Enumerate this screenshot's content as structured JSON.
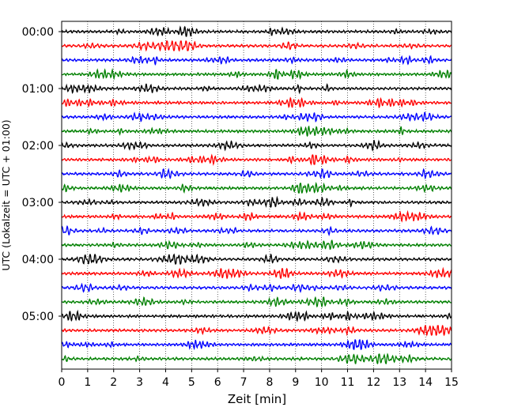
{
  "chart_data": {
    "type": "line",
    "title": "",
    "xlabel": "Zeit  [min]",
    "ylabel": "UTC (Lokalzeit = UTC + 01:00)",
    "xlim": [
      0,
      15
    ],
    "x_ticks": [
      "0",
      "1",
      "2",
      "3",
      "4",
      "5",
      "6",
      "7",
      "8",
      "9",
      "10",
      "11",
      "12",
      "13",
      "14",
      "15"
    ],
    "y_ticks": [
      "00:00",
      "01:00",
      "02:00",
      "03:00",
      "04:00",
      "05:00"
    ],
    "trace_interval_min": 15,
    "trace_count": 24,
    "grid": "vertical dotted at each minute",
    "color_cycle": [
      "#000000",
      "#ff0000",
      "#0000ff",
      "#008000"
    ]
  }
}
